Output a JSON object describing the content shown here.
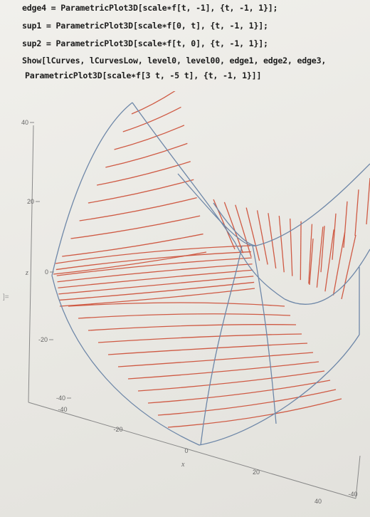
{
  "notebook": {
    "input_lines": [
      "edge4 = ParametricPlot3D[scale∗f[t, -1], {t, -1, 1}];",
      "sup1 = ParametricPlot3D[scale∗f[0, t], {t, -1, 1}];",
      "sup2 = ParametricPlot3D[scale∗f[t, 0], {t, -1, 1}];",
      "Show[lCurves, lCurvesLow, level0, level00, edge1, edge2, edge3,",
      "ParametricPlot3D[scale∗f[3 t, -5 t], {t, -1, 1}]]"
    ],
    "cell_bracket": "]="
  },
  "plot": {
    "type": "3D parametric surface (hyperbolic paraboloid, saddle)",
    "z_ticks": [
      "40",
      "20",
      "0",
      "-20",
      "-40"
    ],
    "z_axis_label": "z",
    "x_ticks": [
      "-40",
      "-20",
      "0",
      "20",
      "40"
    ],
    "x_axis_label": "x",
    "y_ticks": [
      "-40"
    ],
    "colors": {
      "level_curves": "#cf5a44",
      "edges": "#6e87a8",
      "axes": "#888888"
    }
  }
}
